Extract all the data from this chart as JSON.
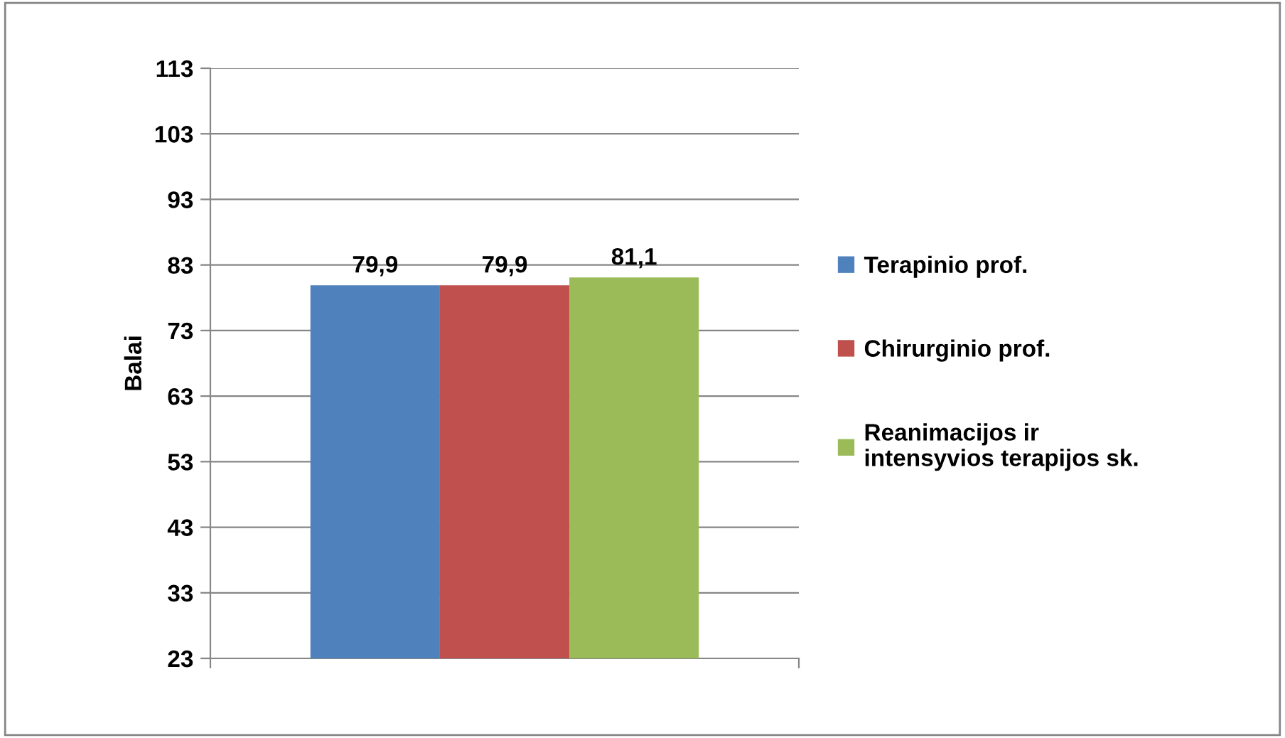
{
  "chart_data": {
    "type": "bar",
    "ylabel": "Balai",
    "categories": [
      null
    ],
    "series": [
      {
        "name": "Terapinio prof.",
        "color": "#4f81bd",
        "values": [
          79.9
        ],
        "value_labels": [
          "79,9"
        ]
      },
      {
        "name": "Chirurginio prof.",
        "color": "#c0504d",
        "values": [
          79.9
        ],
        "value_labels": [
          "79,9"
        ]
      },
      {
        "name": "Reanimacijos ir\nintensyvios terapijos sk.",
        "color": "#9bbb59",
        "values": [
          81.1
        ],
        "value_labels": [
          "81,1"
        ]
      }
    ],
    "ylim": [
      23,
      113
    ],
    "yticks": [
      23,
      33,
      43,
      53,
      63,
      73,
      83,
      93,
      103,
      113
    ],
    "grid": "y",
    "legend": "right"
  }
}
